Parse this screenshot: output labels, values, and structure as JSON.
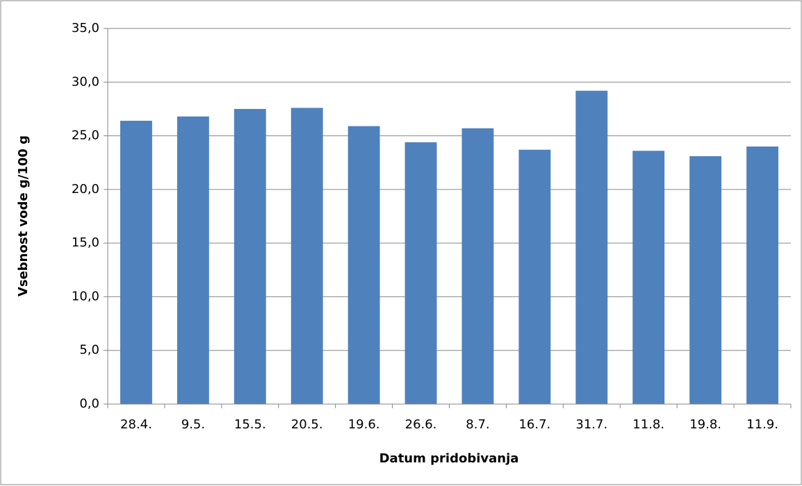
{
  "chart_data": {
    "type": "bar",
    "x_label": "Datum pridobivanja",
    "y_label": "Vsebnost vode g/100 g",
    "categories": [
      "28.4.",
      "9.5.",
      "15.5.",
      "20.5.",
      "19.6.",
      "26.6.",
      "8.7.",
      "16.7.",
      "31.7.",
      "11.8.",
      "19.8.",
      "11.9."
    ],
    "values": [
      26.4,
      26.8,
      27.5,
      27.6,
      25.9,
      24.4,
      25.7,
      23.7,
      29.2,
      23.6,
      23.1,
      24.0
    ],
    "color": "#4f81bd",
    "ylim": [
      0,
      35
    ],
    "yticks": [
      {
        "value": 0,
        "label": "0,0"
      },
      {
        "value": 5,
        "label": "5,0"
      },
      {
        "value": 10,
        "label": "10,0"
      },
      {
        "value": 15,
        "label": "15,0"
      },
      {
        "value": 20,
        "label": "20,0"
      },
      {
        "value": 25,
        "label": "25,0"
      },
      {
        "value": 30,
        "label": "30,0"
      },
      {
        "value": 35,
        "label": "35,0"
      }
    ],
    "grid": true
  }
}
